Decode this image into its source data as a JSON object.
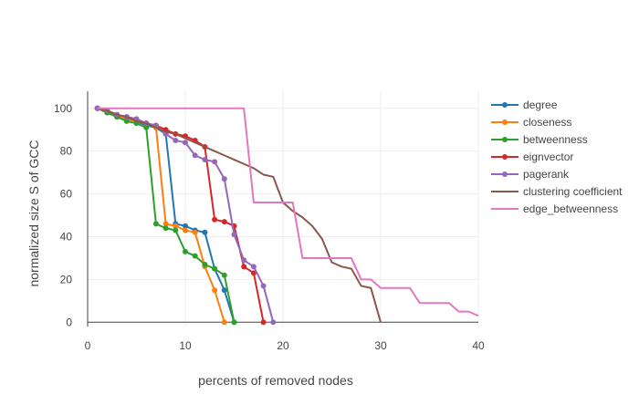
{
  "chart_data": {
    "type": "line",
    "title": "",
    "xlabel": "percents of removed nodes",
    "ylabel": "normalized size S of GCC",
    "xlim": [
      0,
      40
    ],
    "ylim": [
      -2,
      108
    ],
    "xticks": [
      0,
      10,
      20,
      30,
      40
    ],
    "yticks": [
      0,
      20,
      40,
      60,
      80,
      100
    ],
    "grid": true,
    "legend_position": "right",
    "series": [
      {
        "name": "degree",
        "color": "#1f77b4",
        "markers": true,
        "x": [
          1,
          2,
          3,
          4,
          5,
          6,
          7,
          8,
          9,
          10,
          11,
          12,
          13,
          14,
          15
        ],
        "y": [
          100,
          98,
          96,
          95,
          94,
          92,
          91,
          88,
          46,
          45,
          43,
          42,
          25,
          15,
          0
        ]
      },
      {
        "name": "closeness",
        "color": "#ff7f0e",
        "markers": true,
        "x": [
          1,
          2,
          3,
          4,
          5,
          6,
          7,
          8,
          9,
          10,
          11,
          12,
          13,
          14
        ],
        "y": [
          100,
          98,
          96,
          95,
          94,
          93,
          91,
          46,
          45,
          43,
          42,
          26,
          15,
          0
        ]
      },
      {
        "name": "betweenness",
        "color": "#2ca02c",
        "markers": true,
        "x": [
          1,
          2,
          3,
          4,
          5,
          6,
          7,
          8,
          9,
          10,
          11,
          12,
          13,
          14,
          15
        ],
        "y": [
          100,
          98,
          96,
          94,
          93,
          91,
          46,
          44,
          43,
          33,
          31,
          27,
          25,
          22,
          0
        ]
      },
      {
        "name": "eignvector",
        "color": "#d62728",
        "markers": true,
        "x": [
          1,
          2,
          3,
          4,
          5,
          6,
          7,
          8,
          9,
          10,
          11,
          12,
          13,
          14,
          15,
          16,
          17,
          18
        ],
        "y": [
          100,
          99,
          97,
          96,
          95,
          93,
          92,
          90,
          88,
          87,
          85,
          82,
          48,
          47,
          45,
          26,
          23,
          0
        ]
      },
      {
        "name": "pagerank",
        "color": "#9467bd",
        "markers": true,
        "x": [
          1,
          2,
          3,
          4,
          5,
          6,
          7,
          8,
          9,
          10,
          11,
          12,
          13,
          14,
          15,
          16,
          17,
          18,
          19
        ],
        "y": [
          100,
          99,
          97,
          96,
          95,
          93,
          92,
          88,
          85,
          84,
          78,
          76,
          75,
          67,
          41,
          29,
          26,
          17,
          0
        ]
      },
      {
        "name": "clustering coefficient",
        "color": "#8c564b",
        "markers": false,
        "x": [
          1,
          2,
          3,
          4,
          5,
          6,
          7,
          8,
          9,
          10,
          11,
          12,
          13,
          14,
          15,
          16,
          17,
          18,
          19,
          20,
          21,
          22,
          23,
          24,
          25,
          26,
          27,
          28,
          29,
          30
        ],
        "y": [
          100,
          99,
          97,
          96,
          94,
          93,
          91,
          89,
          88,
          86,
          84,
          82,
          80,
          78,
          76,
          74,
          72,
          69,
          68,
          56,
          52,
          49,
          45,
          39,
          28,
          26,
          25,
          17,
          16,
          0
        ]
      },
      {
        "name": "edge_betweenness",
        "color": "#e377c2",
        "markers": false,
        "x": [
          1,
          16,
          17,
          18,
          19,
          20,
          21,
          22,
          23,
          24,
          25,
          26,
          27,
          28,
          29,
          30,
          31,
          32,
          33,
          34,
          35,
          36,
          37,
          38,
          39,
          40
        ],
        "y": [
          100,
          100,
          56,
          56,
          56,
          56,
          56,
          30,
          30,
          30,
          30,
          30,
          30,
          20,
          20,
          16,
          16,
          16,
          16,
          9,
          9,
          9,
          9,
          5,
          5,
          3
        ]
      }
    ]
  }
}
